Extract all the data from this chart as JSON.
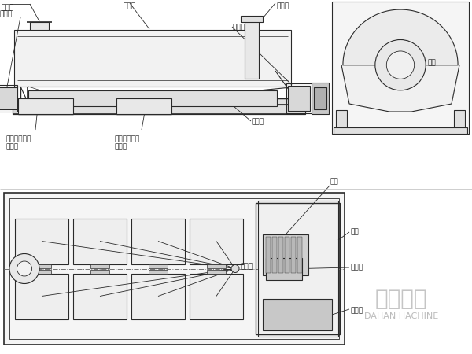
{
  "bg_color": "#ffffff",
  "line_color": "#2a2a2a",
  "line_width": 0.8,
  "fig_width": 6.0,
  "fig_height": 4.5,
  "font_size": 6.5,
  "labels": {
    "dust_port": "除尘口",
    "upper_shell": "上壳体",
    "feed_port": "进料口",
    "bearing_left": "轴承座",
    "bearing_right": "轴承座",
    "frame": "机架",
    "lower_shell": "下壳体",
    "coarse_out": "粗料（筛上）\n出料口",
    "fine_out": "细料（筛下）\n出料口",
    "motor": "电机",
    "cover": "护罩",
    "coupling": "联轴器",
    "reducer": "减速机",
    "inspection": "检修门",
    "dahan1": "大汉机械",
    "dahan2": "DAHAN HACHINE"
  }
}
